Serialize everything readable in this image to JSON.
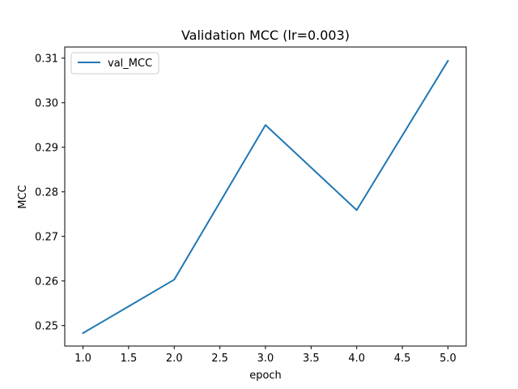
{
  "chart_data": {
    "type": "line",
    "title": "Validation MCC (lr=0.003)",
    "xlabel": "epoch",
    "ylabel": "MCC",
    "xlim": [
      0.8,
      5.2
    ],
    "ylim": [
      0.2454,
      0.3125
    ],
    "x_ticks": [
      1.0,
      1.5,
      2.0,
      2.5,
      3.0,
      3.5,
      4.0,
      4.5,
      5.0
    ],
    "x_tick_labels": [
      "1.0",
      "1.5",
      "2.0",
      "2.5",
      "3.0",
      "3.5",
      "4.0",
      "4.5",
      "5.0"
    ],
    "y_ticks": [
      0.25,
      0.26,
      0.27,
      0.28,
      0.29,
      0.3,
      0.31
    ],
    "y_tick_labels": [
      "0.25",
      "0.26",
      "0.27",
      "0.28",
      "0.29",
      "0.30",
      "0.31"
    ],
    "grid": false,
    "legend_position": "upper-left",
    "series": [
      {
        "name": "val_MCC",
        "color": "#1f77b4",
        "x": [
          1.0,
          2.0,
          3.0,
          4.0,
          5.0
        ],
        "y": [
          0.2483,
          0.2603,
          0.295,
          0.2759,
          0.3094
        ]
      }
    ]
  }
}
